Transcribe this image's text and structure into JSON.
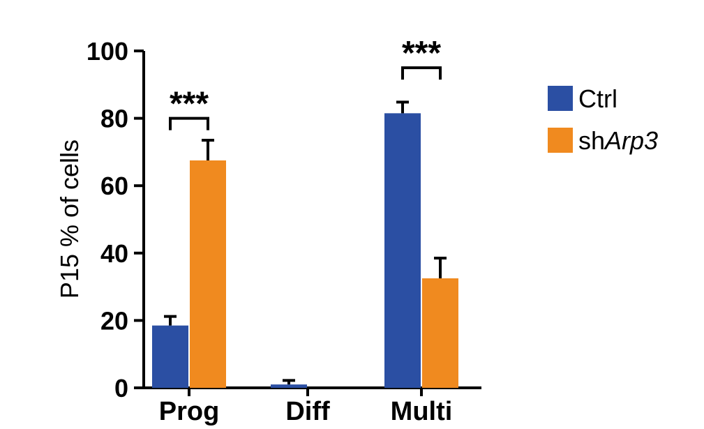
{
  "chart_data": {
    "type": "bar",
    "title": "",
    "xlabel": "",
    "ylabel": "P15 % of cells",
    "ylim": [
      0,
      100
    ],
    "yticks": [
      0,
      20,
      40,
      60,
      80,
      100
    ],
    "ytick_labels": [
      "0",
      "20",
      "40",
      "60",
      "80",
      "100"
    ],
    "grid": false,
    "legend_position": "right",
    "categories": [
      "Prog",
      "Diff",
      "Multi"
    ],
    "series": [
      {
        "name": "Ctrl",
        "color": "#2b4fa3",
        "values": [
          18.5,
          1,
          81.5
        ],
        "errors": [
          2.7,
          1.2,
          3.3
        ]
      },
      {
        "name": "shArp3",
        "color": "#f08a1f",
        "values": [
          67.5,
          0,
          32.5
        ],
        "errors": [
          6,
          0,
          6
        ]
      }
    ],
    "legend": {
      "entries": [
        {
          "label": "Ctrl",
          "prefix": "Ctrl",
          "italic_suffix": ""
        },
        {
          "label": "shArp3",
          "prefix": "sh",
          "italic_suffix": "Arp3"
        }
      ]
    },
    "annotations": [
      {
        "category": "Prog",
        "text": "***",
        "y": 80
      },
      {
        "category": "Multi",
        "text": "***",
        "y": 95
      }
    ]
  }
}
